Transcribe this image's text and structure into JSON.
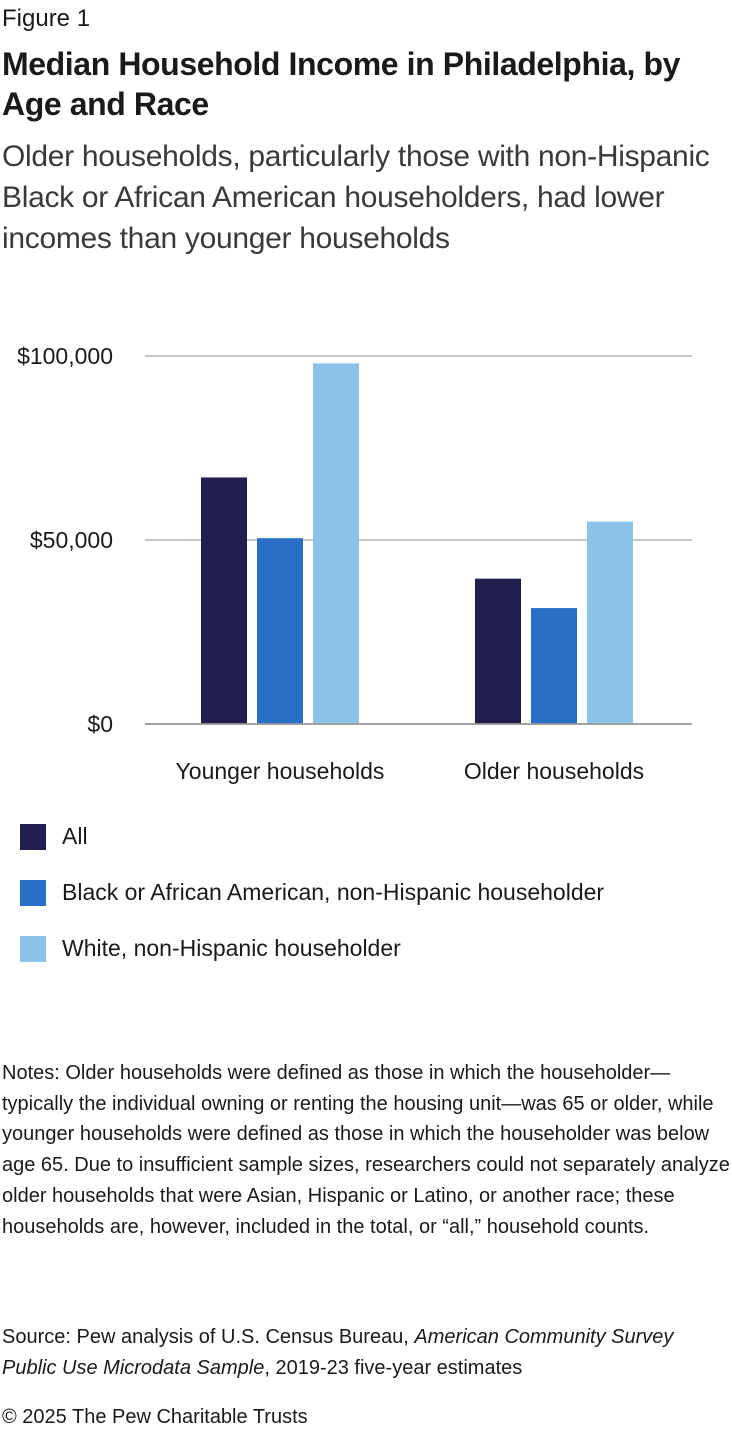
{
  "figure_label": "Figure 1",
  "title": "Median Household Income in Philadelphia, by Age and Race",
  "subtitle": "Older households, particularly those with non-Hispanic Black or African American householders, had lower incomes than younger households",
  "chart_data": {
    "type": "bar",
    "title": "Median Household Income in Philadelphia, by Age and Race",
    "xlabel": "",
    "ylabel": "",
    "categories": [
      "Younger households",
      "Older households"
    ],
    "series": [
      {
        "name": "All",
        "color": "#211f4f",
        "values": [
          67000,
          39500
        ]
      },
      {
        "name": "Black or African American, non-Hispanic householder",
        "color": "#2a6fc6",
        "values": [
          50500,
          31500
        ]
      },
      {
        "name": "White, non-Hispanic householder",
        "color": "#8cc3e9",
        "values": [
          98000,
          55000
        ]
      }
    ],
    "ylim": [
      0,
      100000
    ],
    "yticks": [
      0,
      50000,
      100000
    ],
    "ytick_labels": [
      "$0",
      "$50,000",
      "$100,000"
    ],
    "grid": true,
    "legend_position": "bottom"
  },
  "legend": [
    {
      "label": "All",
      "color": "#211f4f"
    },
    {
      "label": "Black or African American, non-Hispanic householder",
      "color": "#2a6fc6"
    },
    {
      "label": "White, non-Hispanic householder",
      "color": "#8cc3e9"
    }
  ],
  "notes": "Notes: Older households were defined as those in which the householder—typically the individual owning or renting the housing unit—was 65 or older, while younger households were defined as those in which the householder was below age 65. Due to insufficient sample sizes, researchers could not separately analyze older households that were Asian, Hispanic or Latino, or another race; these households are, however, included in the total, or “all,” household counts.",
  "source": {
    "prefix": "Source: Pew analysis of U.S. Census Bureau, ",
    "italic": "American Community Survey Public Use Microdata Sample",
    "suffix": ", 2019-23 five-year estimates"
  },
  "copyright": "© 2025 The Pew Charitable Trusts"
}
